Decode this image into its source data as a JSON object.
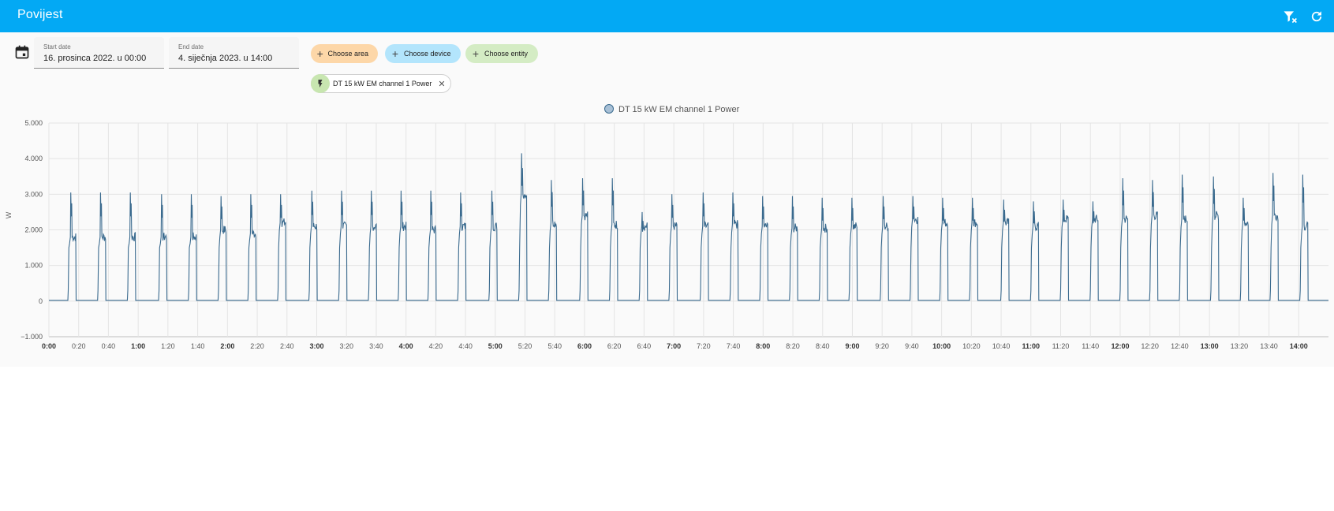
{
  "app": {
    "title": "Povijest"
  },
  "toolbar": {
    "clear_filter_icon": "filter-remove-icon",
    "refresh_icon": "refresh-icon"
  },
  "filters": {
    "start_label": "Start date",
    "start_value": "16. prosinca 2022. u 00:00",
    "end_label": "End date",
    "end_value": "4. siječnja 2023. u 14:00",
    "area_chip": "Choose area",
    "device_chip": "Choose device",
    "entity_chip": "Choose entity",
    "selected_entity": "DT 15 kW EM channel 1 Power"
  },
  "colors": {
    "accent": "#03a9f4",
    "area": "#fdd7a8",
    "device": "#b3e5fc",
    "entity": "#d4ecc4",
    "line": "#3a6a8e"
  },
  "chart_data": {
    "type": "line",
    "legend": "DT 15 kW EM channel 1 Power",
    "ylabel": "W",
    "ylim": [
      -1000,
      5000
    ],
    "yticks": [
      -1000,
      0,
      1000,
      2000,
      3000,
      4000,
      5000
    ],
    "ytick_labels": [
      "−1.000",
      "0",
      "1.000",
      "2.000",
      "3.000",
      "4.000",
      "5.000"
    ],
    "xlim_minutes": [
      0,
      860
    ],
    "xtick_labels": [
      "0:00",
      "0:20",
      "0:40",
      "1:00",
      "1:20",
      "1:40",
      "2:00",
      "2:20",
      "2:40",
      "3:00",
      "3:20",
      "3:40",
      "4:00",
      "4:20",
      "4:40",
      "5:00",
      "5:20",
      "5:40",
      "6:00",
      "6:20",
      "6:40",
      "7:00",
      "7:20",
      "7:40",
      "8:00",
      "8:20",
      "8:40",
      "9:00",
      "9:20",
      "9:40",
      "10:00",
      "10:20",
      "10:40",
      "11:00",
      "11:20",
      "11:40",
      "12:00",
      "12:20",
      "12:40",
      "13:00",
      "13:20",
      "13:40",
      "14:00"
    ],
    "pulses": [
      {
        "start": 13,
        "peak": 3050,
        "plateau": 1800
      },
      {
        "start": 33,
        "peak": 3050,
        "plateau": 1800
      },
      {
        "start": 53,
        "peak": 3050,
        "plateau": 1800
      },
      {
        "start": 74,
        "peak": 3000,
        "plateau": 1800
      },
      {
        "start": 94,
        "peak": 3000,
        "plateau": 1800
      },
      {
        "start": 114,
        "peak": 2950,
        "plateau": 2000
      },
      {
        "start": 134,
        "peak": 3000,
        "plateau": 1900
      },
      {
        "start": 154,
        "peak": 3000,
        "plateau": 2200
      },
      {
        "start": 175,
        "peak": 3100,
        "plateau": 2100
      },
      {
        "start": 195,
        "peak": 3100,
        "plateau": 2100
      },
      {
        "start": 215,
        "peak": 3100,
        "plateau": 2100
      },
      {
        "start": 235,
        "peak": 3100,
        "plateau": 2100
      },
      {
        "start": 255,
        "peak": 3100,
        "plateau": 2000
      },
      {
        "start": 275,
        "peak": 3050,
        "plateau": 2100
      },
      {
        "start": 296,
        "peak": 3100,
        "plateau": 2100
      },
      {
        "start": 316,
        "peak": 4150,
        "plateau": 3000
      },
      {
        "start": 336,
        "peak": 3400,
        "plateau": 2200
      },
      {
        "start": 357,
        "peak": 3450,
        "plateau": 2400
      },
      {
        "start": 377,
        "peak": 3450,
        "plateau": 2150
      },
      {
        "start": 397,
        "peak": 2500,
        "plateau": 2100
      },
      {
        "start": 417,
        "peak": 3000,
        "plateau": 2100
      },
      {
        "start": 438,
        "peak": 3050,
        "plateau": 2100
      },
      {
        "start": 458,
        "peak": 3050,
        "plateau": 2150
      },
      {
        "start": 478,
        "peak": 2950,
        "plateau": 2100
      },
      {
        "start": 498,
        "peak": 2950,
        "plateau": 2050
      },
      {
        "start": 518,
        "peak": 2900,
        "plateau": 2050
      },
      {
        "start": 538,
        "peak": 2900,
        "plateau": 2100
      },
      {
        "start": 559,
        "peak": 2950,
        "plateau": 2100
      },
      {
        "start": 579,
        "peak": 2950,
        "plateau": 2300
      },
      {
        "start": 599,
        "peak": 2900,
        "plateau": 2200
      },
      {
        "start": 619,
        "peak": 2900,
        "plateau": 2200
      },
      {
        "start": 640,
        "peak": 2850,
        "plateau": 2200
      },
      {
        "start": 660,
        "peak": 2800,
        "plateau": 2100
      },
      {
        "start": 680,
        "peak": 2850,
        "plateau": 2300
      },
      {
        "start": 700,
        "peak": 2800,
        "plateau": 2300
      },
      {
        "start": 720,
        "peak": 3450,
        "plateau": 2300
      },
      {
        "start": 740,
        "peak": 3400,
        "plateau": 2400
      },
      {
        "start": 760,
        "peak": 3550,
        "plateau": 2300
      },
      {
        "start": 781,
        "peak": 3500,
        "plateau": 2400
      },
      {
        "start": 801,
        "peak": 2900,
        "plateau": 2200
      },
      {
        "start": 821,
        "peak": 3600,
        "plateau": 2400
      },
      {
        "start": 841,
        "peak": 3550,
        "plateau": 2100
      }
    ]
  }
}
